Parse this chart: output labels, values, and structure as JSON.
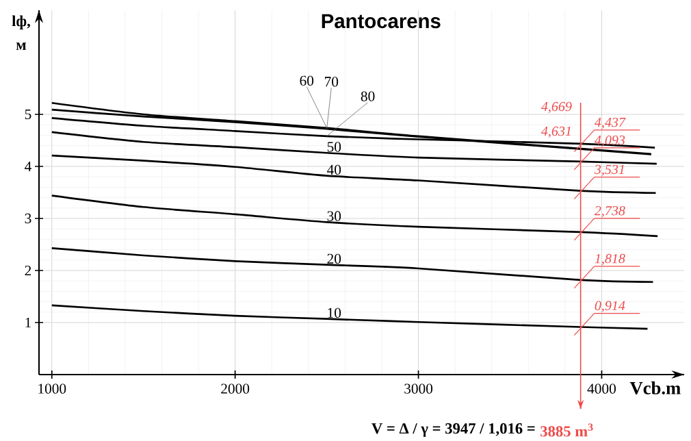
{
  "chart_data": {
    "type": "line",
    "title": "Pantocarens",
    "xlabel": "Vcb.m",
    "ylabel": "lф, м",
    "xlim": [
      930,
      4450
    ],
    "ylim": [
      0,
      7
    ],
    "xticks": [
      1000,
      2000,
      3000,
      4000
    ],
    "yticks": [
      1,
      2,
      3,
      4,
      5
    ],
    "grid": true,
    "series": [
      {
        "name": "10",
        "color": "#000000",
        "x": [
          1000,
          1500,
          2000,
          2500,
          3000,
          3885,
          4250
        ],
        "values": [
          1.33,
          1.22,
          1.13,
          1.07,
          1.01,
          0.914,
          0.88
        ]
      },
      {
        "name": "20",
        "color": "#000000",
        "x": [
          1000,
          1500,
          2000,
          2500,
          3000,
          3885,
          4280
        ],
        "values": [
          2.43,
          2.29,
          2.18,
          2.11,
          2.04,
          1.818,
          1.78
        ]
      },
      {
        "name": "30",
        "color": "#000000",
        "x": [
          1000,
          1500,
          2000,
          2500,
          3000,
          3885,
          4305
        ],
        "values": [
          3.44,
          3.22,
          3.08,
          2.93,
          2.84,
          2.738,
          2.66
        ]
      },
      {
        "name": "40",
        "color": "#000000",
        "x": [
          1000,
          1500,
          2000,
          2500,
          3000,
          3885,
          4295
        ],
        "values": [
          4.21,
          4.11,
          3.99,
          3.82,
          3.73,
          3.531,
          3.49
        ]
      },
      {
        "name": "50",
        "color": "#000000",
        "x": [
          1000,
          1500,
          2000,
          2500,
          3000,
          3885,
          4300
        ],
        "values": [
          4.66,
          4.47,
          4.37,
          4.26,
          4.17,
          4.093,
          4.05
        ]
      },
      {
        "name": "60",
        "color": "#000000",
        "x": [
          1000,
          1500,
          2000,
          2500,
          3000,
          4270
        ],
        "values": [
          5.22,
          5.0,
          4.87,
          4.74,
          4.58,
          4.24
        ]
      },
      {
        "name": "70",
        "color": "#000000",
        "x": [
          1000,
          1500,
          2000,
          2500,
          3000,
          4270
        ],
        "values": [
          5.09,
          4.96,
          4.85,
          4.72,
          4.57,
          4.23
        ]
      },
      {
        "name": "80",
        "color": "#000000",
        "x": [
          1000,
          1500,
          2000,
          2500,
          3000,
          3885,
          4290
        ],
        "values": [
          4.93,
          4.78,
          4.68,
          4.58,
          4.52,
          4.437,
          4.36
        ]
      }
    ],
    "ref_lines": [
      {
        "axis": "x",
        "value": 3885,
        "color": "#ee4b4b"
      }
    ],
    "annotations": [
      "4,669",
      "4,631",
      {
        "text": "4,437",
        "y": 4.437
      },
      {
        "text": "4,093",
        "y": 4.093
      },
      {
        "text": "3,531",
        "y": 3.531
      },
      {
        "text": "2,738",
        "y": 2.738
      },
      {
        "text": "1,818",
        "y": 1.818
      },
      {
        "text": "0,914",
        "y": 0.914
      },
      "V = Δ / γ = 3947 / 1,016 =",
      "3885 m$^{3}$"
    ]
  }
}
